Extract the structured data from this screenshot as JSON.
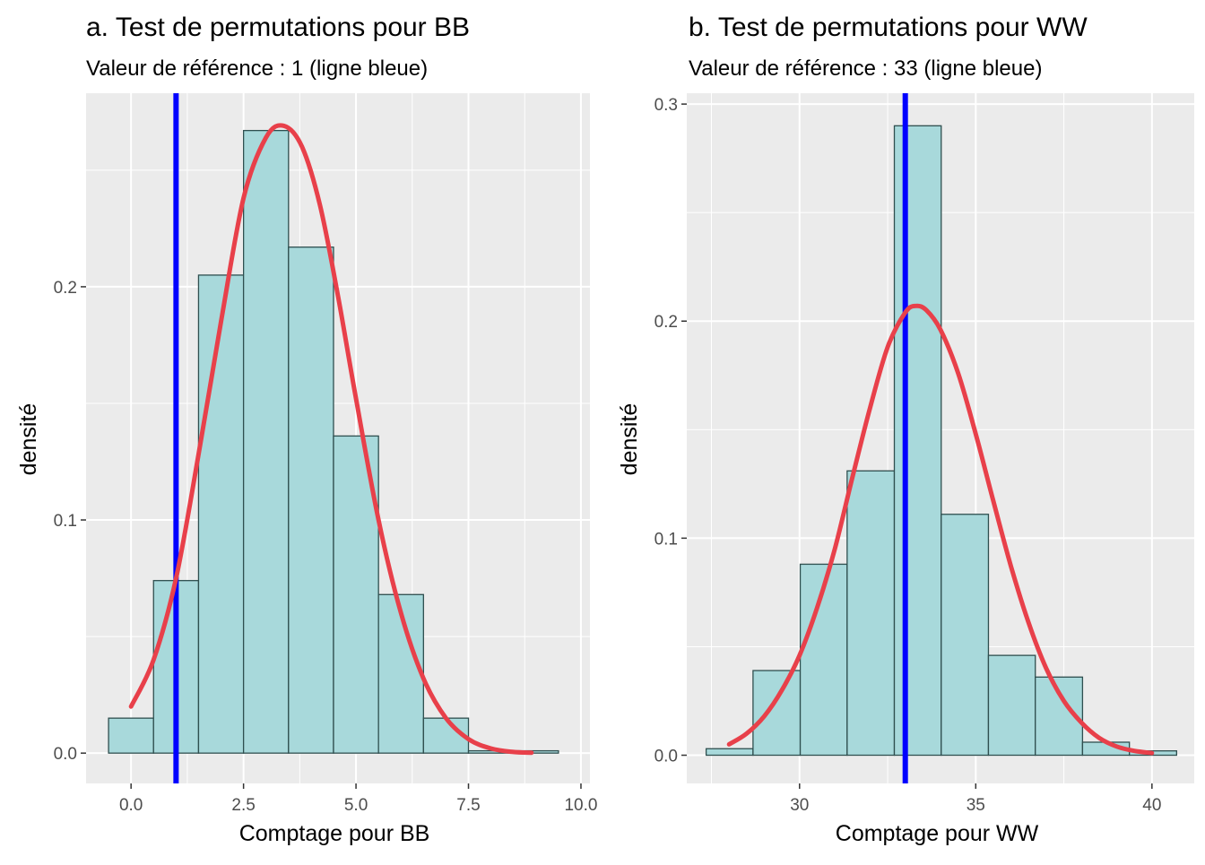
{
  "chart_data": [
    {
      "type": "bar",
      "title": "a. Test de permutations pour BB",
      "subtitle": "Valeur de référence : 1 (ligne bleue)",
      "xlabel": "Comptage pour BB",
      "ylabel": "densité",
      "xlim": [
        -1,
        10.2
      ],
      "ylim": [
        -0.013,
        0.283
      ],
      "x_ticks": [
        0,
        2.5,
        5,
        7.5,
        10
      ],
      "x_tick_labels": [
        "0.0",
        "2.5",
        "5.0",
        "7.5",
        "10.0"
      ],
      "y_ticks": [
        0,
        0.1,
        0.2
      ],
      "y_tick_labels": [
        "0.0",
        "0.1",
        "0.2"
      ],
      "grid": true,
      "bins": [
        {
          "x0": -0.5,
          "x1": 0.5,
          "density": 0.015
        },
        {
          "x0": 0.5,
          "x1": 1.5,
          "density": 0.074
        },
        {
          "x0": 1.5,
          "x1": 2.5,
          "density": 0.205
        },
        {
          "x0": 2.5,
          "x1": 3.5,
          "density": 0.267
        },
        {
          "x0": 3.5,
          "x1": 4.5,
          "density": 0.217
        },
        {
          "x0": 4.5,
          "x1": 5.5,
          "density": 0.136
        },
        {
          "x0": 5.5,
          "x1": 6.5,
          "density": 0.068
        },
        {
          "x0": 6.5,
          "x1": 7.5,
          "density": 0.015
        },
        {
          "x0": 7.5,
          "x1": 8.5,
          "density": 0.001
        },
        {
          "x0": 8.5,
          "x1": 9.5,
          "density": 0.001
        }
      ],
      "density_curve": {
        "x": [
          0,
          0.5,
          1,
          1.5,
          2,
          2.5,
          3,
          3.4,
          3.8,
          4.2,
          4.6,
          5,
          5.5,
          6,
          6.5,
          7,
          7.5,
          8,
          8.5,
          8.9
        ],
        "y": [
          0.02,
          0.04,
          0.075,
          0.128,
          0.185,
          0.238,
          0.264,
          0.269,
          0.26,
          0.235,
          0.196,
          0.152,
          0.1,
          0.06,
          0.032,
          0.015,
          0.006,
          0.002,
          0.0005,
          0.0002
        ]
      },
      "reference_value": 1,
      "colors": {
        "bar_fill": "#a8d9db",
        "bar_stroke": "#2f4f4f",
        "curve": "#e8404a",
        "reference": "#0000ff",
        "panel": "#ebebeb",
        "grid": "#ffffff"
      }
    },
    {
      "type": "bar",
      "title": "b. Test de permutations pour WW",
      "subtitle": "Valeur de référence : 33 (ligne bleue)",
      "xlabel": "Comptage pour WW",
      "ylabel": "densité",
      "xlim": [
        26.8,
        41.2
      ],
      "ylim": [
        -0.013,
        0.305
      ],
      "x_ticks": [
        30,
        35,
        40
      ],
      "x_tick_labels": [
        "30",
        "35",
        "40"
      ],
      "y_ticks": [
        0,
        0.1,
        0.2,
        0.3
      ],
      "y_tick_labels": [
        "0.0",
        "0.1",
        "0.2",
        "0.3"
      ],
      "grid": true,
      "bins": [
        {
          "x0": 27.35,
          "x1": 28.68,
          "density": 0.003
        },
        {
          "x0": 28.68,
          "x1": 30.02,
          "density": 0.039
        },
        {
          "x0": 30.02,
          "x1": 31.35,
          "density": 0.088
        },
        {
          "x0": 31.35,
          "x1": 32.69,
          "density": 0.131
        },
        {
          "x0": 32.69,
          "x1": 34.02,
          "density": 0.29
        },
        {
          "x0": 34.02,
          "x1": 35.36,
          "density": 0.111
        },
        {
          "x0": 35.36,
          "x1": 36.69,
          "density": 0.046
        },
        {
          "x0": 36.69,
          "x1": 38.03,
          "density": 0.036
        },
        {
          "x0": 38.03,
          "x1": 39.36,
          "density": 0.006
        },
        {
          "x0": 39.36,
          "x1": 40.7,
          "density": 0.002
        }
      ],
      "density_curve": {
        "x": [
          28,
          28.5,
          29,
          29.5,
          30,
          30.5,
          31,
          31.5,
          32,
          32.5,
          33,
          33.3,
          33.6,
          34,
          34.5,
          35,
          35.5,
          36,
          36.5,
          37,
          37.5,
          38,
          38.5,
          39,
          39.5,
          40
        ],
        "y": [
          0.005,
          0.01,
          0.018,
          0.03,
          0.046,
          0.068,
          0.095,
          0.128,
          0.16,
          0.188,
          0.204,
          0.207,
          0.205,
          0.196,
          0.176,
          0.148,
          0.117,
          0.087,
          0.061,
          0.04,
          0.025,
          0.015,
          0.008,
          0.004,
          0.002,
          0.001
        ]
      },
      "reference_value": 33,
      "colors": {
        "bar_fill": "#a8d9db",
        "bar_stroke": "#2f4f4f",
        "curve": "#e8404a",
        "reference": "#0000ff",
        "panel": "#ebebeb",
        "grid": "#ffffff"
      }
    }
  ]
}
